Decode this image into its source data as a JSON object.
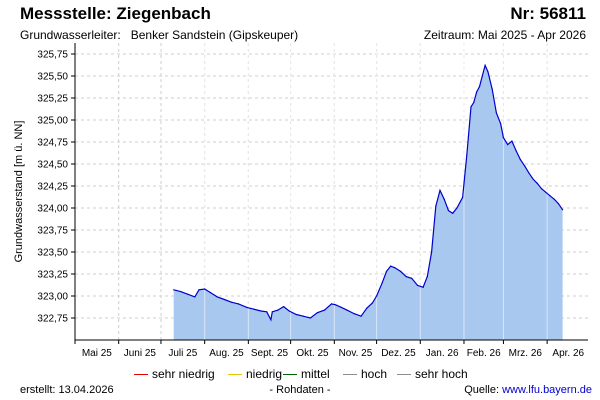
{
  "header": {
    "title": "Messstelle: Ziegenbach",
    "station_nr": "Nr: 56811",
    "aquifer_label": "Grundwasserleiter:",
    "aquifer_value": "Benker Sandstein (Gipskeuper)",
    "period": "Zeitraum: Mai 2025 - Apr 2026"
  },
  "footer": {
    "created": "erstellt:  13.04.2026",
    "note": "- Rohdaten -",
    "source_label": "Quelle: ",
    "source_value": "www.lfu.bayern.de"
  },
  "legend": [
    {
      "label": "sehr niedrig",
      "color": "#e60000"
    },
    {
      "label": "niedrig",
      "color": "#e6c800"
    },
    {
      "label": "mittel",
      "color": "#006400"
    },
    {
      "label": "hoch",
      "color": "#8c8c8c"
    },
    {
      "label": "sehr hoch",
      "color": "#8c8c8c"
    }
  ],
  "chart_data": {
    "type": "area",
    "ylabel": "Grundwasserstand [m ü. NN]",
    "ylim": [
      322.5,
      325.875
    ],
    "yticks": [
      322.75,
      323.0,
      323.25,
      323.5,
      323.75,
      324.0,
      324.25,
      324.5,
      324.75,
      325.0,
      325.25,
      325.5,
      325.75
    ],
    "ytick_labels": [
      "322,75",
      "323,00",
      "323,25",
      "323,50",
      "323,75",
      "324,00",
      "324,25",
      "324,50",
      "324,75",
      "325,00",
      "325,25",
      "325,50",
      "325,75"
    ],
    "xlim": [
      "2025-05-01",
      "2026-04-30"
    ],
    "xticks": [
      "Mai 25",
      "Juni 25",
      "Juli 25",
      "Aug. 25",
      "Sept. 25",
      "Okt. 25",
      "Nov. 25",
      "Dez. 25",
      "Jan. 26",
      "Feb. 26",
      "Mrz. 26",
      "Apr. 26"
    ],
    "grid": true,
    "line_color": "#0000cc",
    "fill_color": "#a9c8ef",
    "series": [
      {
        "x": [
          "2025-07-10",
          "2025-07-15",
          "2025-07-20",
          "2025-07-25",
          "2025-07-28",
          "2025-08-01",
          "2025-08-05",
          "2025-08-10",
          "2025-08-15",
          "2025-08-20",
          "2025-08-25",
          "2025-08-31",
          "2025-09-05",
          "2025-09-10",
          "2025-09-14",
          "2025-09-17",
          "2025-09-18",
          "2025-09-22",
          "2025-09-26",
          "2025-09-30",
          "2025-10-05",
          "2025-10-10",
          "2025-10-15",
          "2025-10-20",
          "2025-10-25",
          "2025-10-30",
          "2025-11-02",
          "2025-11-06",
          "2025-11-10",
          "2025-11-15",
          "2025-11-20",
          "2025-11-24",
          "2025-11-28",
          "2025-12-01",
          "2025-12-05",
          "2025-12-08",
          "2025-12-11",
          "2025-12-14",
          "2025-12-18",
          "2025-12-22",
          "2025-12-26",
          "2025-12-30",
          "2026-01-03",
          "2026-01-06",
          "2026-01-09",
          "2026-01-12",
          "2026-01-15",
          "2026-01-18",
          "2026-01-21",
          "2026-01-24",
          "2026-01-27",
          "2026-01-31",
          "2026-02-03",
          "2026-02-06",
          "2026-02-08",
          "2026-02-10",
          "2026-02-12",
          "2026-02-14",
          "2026-02-16",
          "2026-02-18",
          "2026-02-21",
          "2026-02-24",
          "2026-02-27",
          "2026-03-01",
          "2026-03-04",
          "2026-03-07",
          "2026-03-10",
          "2026-03-13",
          "2026-03-16",
          "2026-03-19",
          "2026-03-22",
          "2026-03-25",
          "2026-03-28",
          "2026-03-31",
          "2026-04-03",
          "2026-04-06",
          "2026-04-09",
          "2026-04-12"
        ],
        "y": [
          323.07,
          323.05,
          323.02,
          322.99,
          323.07,
          323.08,
          323.04,
          322.99,
          322.96,
          322.93,
          322.91,
          322.87,
          322.85,
          322.83,
          322.82,
          322.73,
          322.82,
          322.84,
          322.88,
          322.83,
          322.79,
          322.77,
          322.75,
          322.81,
          322.84,
          322.91,
          322.9,
          322.87,
          322.84,
          322.8,
          322.77,
          322.86,
          322.92,
          323.0,
          323.15,
          323.28,
          323.34,
          323.32,
          323.28,
          323.22,
          323.2,
          323.12,
          323.1,
          323.22,
          323.5,
          324.02,
          324.2,
          324.1,
          323.97,
          323.94,
          324.0,
          324.12,
          324.6,
          325.15,
          325.2,
          325.32,
          325.38,
          325.5,
          325.62,
          325.55,
          325.35,
          325.08,
          324.96,
          324.8,
          324.72,
          324.76,
          324.65,
          324.55,
          324.48,
          324.4,
          324.33,
          324.28,
          324.22,
          324.18,
          324.14,
          324.1,
          324.05,
          323.98
        ]
      }
    ]
  }
}
